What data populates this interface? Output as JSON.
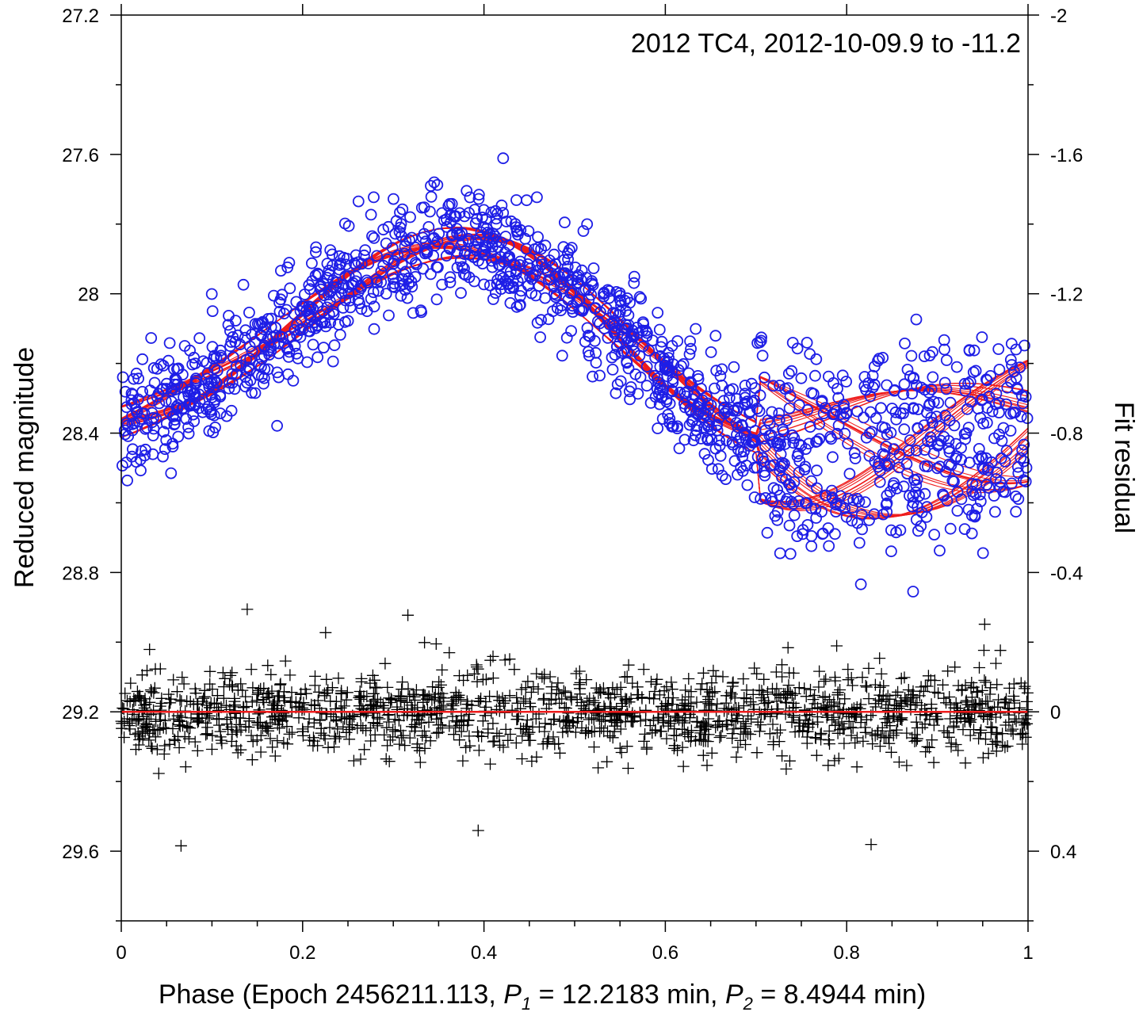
{
  "chart_data": {
    "type": "scatter",
    "title": "2012 TC4, 2012-10-09.9 to -11.2",
    "xlabel": {
      "prefix": "Phase (Epoch 2456211.113, ",
      "p1_symbol": "P",
      "p1_sub": "1",
      "p1_value": " = 12.2183 min, ",
      "p2_symbol": "P",
      "p2_sub": "2",
      "p2_value": " = 8.4944 min)"
    },
    "ylabel_left": "Reduced magnitude",
    "ylabel_right": "Fit residual",
    "x_range": [
      0,
      1
    ],
    "y_left_range": [
      27.2,
      29.8
    ],
    "y_left_inverted": true,
    "y_right_range": [
      -2,
      0.6
    ],
    "x_ticks": [
      "0",
      "0.2",
      "0.4",
      "0.6",
      "0.8",
      "1"
    ],
    "y_left_ticks": [
      "27.2",
      "27.6",
      "28",
      "28.4",
      "28.8",
      "29.2",
      "29.6"
    ],
    "y_right_ticks": [
      "-2",
      "-1.6",
      "-1.2",
      "-0.8",
      "-0.4",
      "0",
      "0.4"
    ],
    "grid": false,
    "colors": {
      "observations": "#1e1ee6",
      "model": "#ee1c1c",
      "residuals": "#000000",
      "zero_line": "#ee1c1c"
    },
    "model": {
      "description_mean_magnitude": 28.2,
      "period_ratio_p1_over_p2": 1.4384,
      "components": [
        {
          "period": "P1",
          "harmonic": 1,
          "amplitude": 0.3,
          "phase_peak": 0.375
        },
        {
          "period": "P2",
          "harmonic": 1,
          "amplitude": 0.18,
          "phase_peak": 0.86
        }
      ],
      "curve_count": 40
    },
    "series": [
      {
        "kind": "observations",
        "marker": "circle",
        "count": 1500
      },
      {
        "kind": "residuals",
        "marker": "plus",
        "count": 1500,
        "zero_level": 0
      }
    ]
  }
}
